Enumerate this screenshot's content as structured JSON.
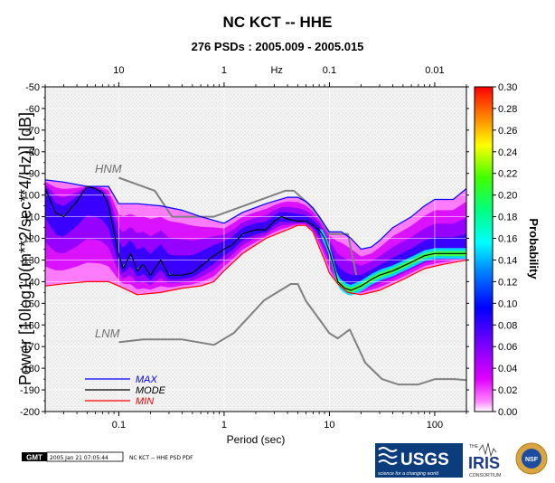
{
  "chart_data": {
    "type": "heatmap",
    "title": "NC KCT -- HHE",
    "subtitle": "276 PSDs : 2005.009 - 2005.015",
    "xlabel": "Period (sec)",
    "ylabel": "Power [10log10(m**2/sec**4/Hz)] [dB]",
    "top_axis_label": "Hz",
    "colorbar_label": "Probability",
    "xscale": "log",
    "xlim": [
      0.02,
      200
    ],
    "ylim": [
      -200,
      -50
    ],
    "x_ticks": [
      "0.1",
      "1",
      "10",
      "100"
    ],
    "top_ticks": [
      "10",
      "1",
      "0.1",
      "0.01"
    ],
    "y_ticks": [
      "-50",
      "-60",
      "-70",
      "-80",
      "-90",
      "-100",
      "-110",
      "-120",
      "-130",
      "-140",
      "-150",
      "-160",
      "-170",
      "-180",
      "-190",
      "-200"
    ],
    "colorbar_ticks": [
      "0.30",
      "0.28",
      "0.26",
      "0.24",
      "0.22",
      "0.20",
      "0.18",
      "0.16",
      "0.14",
      "0.12",
      "0.10",
      "0.08",
      "0.06",
      "0.04",
      "0.02",
      "0.00"
    ],
    "colorbar_range": [
      0,
      0.3
    ],
    "grid": true,
    "annotations": [
      "HNM",
      "LNM"
    ],
    "legend": {
      "placement": "bottom-left",
      "entries": [
        {
          "label": "MAX",
          "color": "#0000ff"
        },
        {
          "label": "MODE",
          "color": "#000000"
        },
        {
          "label": "MIN",
          "color": "#ff0000"
        }
      ]
    },
    "series": [
      {
        "name": "HNM",
        "color": "#808080",
        "x": [
          0.1,
          0.22,
          0.32,
          0.8,
          3.8,
          4.6,
          6.3,
          8,
          10,
          15,
          18
        ],
        "y": [
          -92,
          -98,
          -110,
          -110,
          -98,
          -98,
          -104,
          -110,
          -118,
          -118,
          -137
        ]
      },
      {
        "name": "LNM",
        "color": "#808080",
        "x": [
          0.1,
          0.17,
          0.4,
          0.8,
          1.24,
          2.4,
          4.3,
          5,
          6,
          10,
          12,
          15.6,
          21.9,
          31.6,
          45,
          70,
          101,
          154,
          200
        ],
        "y": [
          -168,
          -166.7,
          -166.7,
          -169.2,
          -163.7,
          -148.6,
          -141.1,
          -141.1,
          -149,
          -163.8,
          -166.2,
          -162.1,
          -177.5,
          -185,
          -187.5,
          -187.5,
          -185,
          -185,
          -185.5
        ]
      },
      {
        "name": "MAX",
        "color": "#0000ff",
        "x": [
          0.02,
          0.03,
          0.05,
          0.08,
          0.1,
          0.15,
          0.25,
          0.4,
          0.6,
          1,
          1.5,
          2.5,
          4,
          5,
          6,
          7,
          8,
          10,
          13,
          16,
          20,
          25,
          30,
          40,
          60,
          80,
          100,
          150,
          200
        ],
        "y": [
          -93,
          -94,
          -96,
          -96,
          -104,
          -104,
          -105,
          -107,
          -110,
          -113,
          -108,
          -104,
          -101,
          -101,
          -103,
          -106,
          -110,
          -117,
          -117,
          -120,
          -125,
          -124,
          -121,
          -115,
          -110,
          -105,
          -102,
          -102,
          -97
        ]
      },
      {
        "name": "MODE",
        "color": "#000000",
        "x": [
          0.02,
          0.025,
          0.03,
          0.04,
          0.05,
          0.06,
          0.07,
          0.08,
          0.09,
          0.1,
          0.11,
          0.13,
          0.15,
          0.17,
          0.2,
          0.25,
          0.3,
          0.4,
          0.5,
          0.6,
          0.8,
          1,
          1.2,
          1.5,
          2,
          2.5,
          3,
          3.5,
          4,
          5,
          6,
          7,
          8,
          9,
          10,
          11,
          12,
          14,
          16,
          20,
          25,
          30,
          40,
          60,
          80,
          100,
          150,
          200
        ],
        "y": [
          -97,
          -108,
          -110,
          -103,
          -96,
          -97,
          -99,
          -105,
          -117,
          -128,
          -134,
          -127,
          -135,
          -132,
          -137,
          -130,
          -137,
          -137,
          -136,
          -133,
          -128,
          -125,
          -123,
          -118,
          -116,
          -116,
          -112,
          -110,
          -111,
          -112,
          -112,
          -114,
          -116,
          -120,
          -126,
          -133,
          -140,
          -143,
          -144,
          -142,
          -139,
          -137,
          -135,
          -131,
          -128,
          -127,
          -127,
          -127
        ]
      },
      {
        "name": "MIN",
        "color": "#ff0000",
        "x": [
          0.02,
          0.03,
          0.05,
          0.08,
          0.1,
          0.15,
          0.25,
          0.4,
          0.6,
          0.8,
          1,
          1.5,
          2.5,
          4,
          5,
          6,
          7,
          8,
          9,
          10,
          12,
          15,
          20,
          30,
          50,
          80,
          120,
          200
        ],
        "y": [
          -142,
          -141,
          -140,
          -140,
          -142,
          -146,
          -145,
          -143,
          -142,
          -140,
          -135,
          -127,
          -120,
          -116,
          -114,
          -114,
          -117,
          -124,
          -130,
          -136,
          -141,
          -145,
          -146,
          -144,
          -139,
          -134,
          -132,
          -130
        ]
      }
    ]
  },
  "footer": {
    "gmt_label": "GMT",
    "timestamp": "2005 Jan 21 07:05:44",
    "caption": "NC KCT -- HHE PSD PDF",
    "usgs_label": "USGS",
    "usgs_tagline": "science for a changing world",
    "iris_label": "IRIS",
    "iris_small": "THE",
    "iris_consortium": "CONSORTIUM",
    "nsf_label": "NSF"
  }
}
